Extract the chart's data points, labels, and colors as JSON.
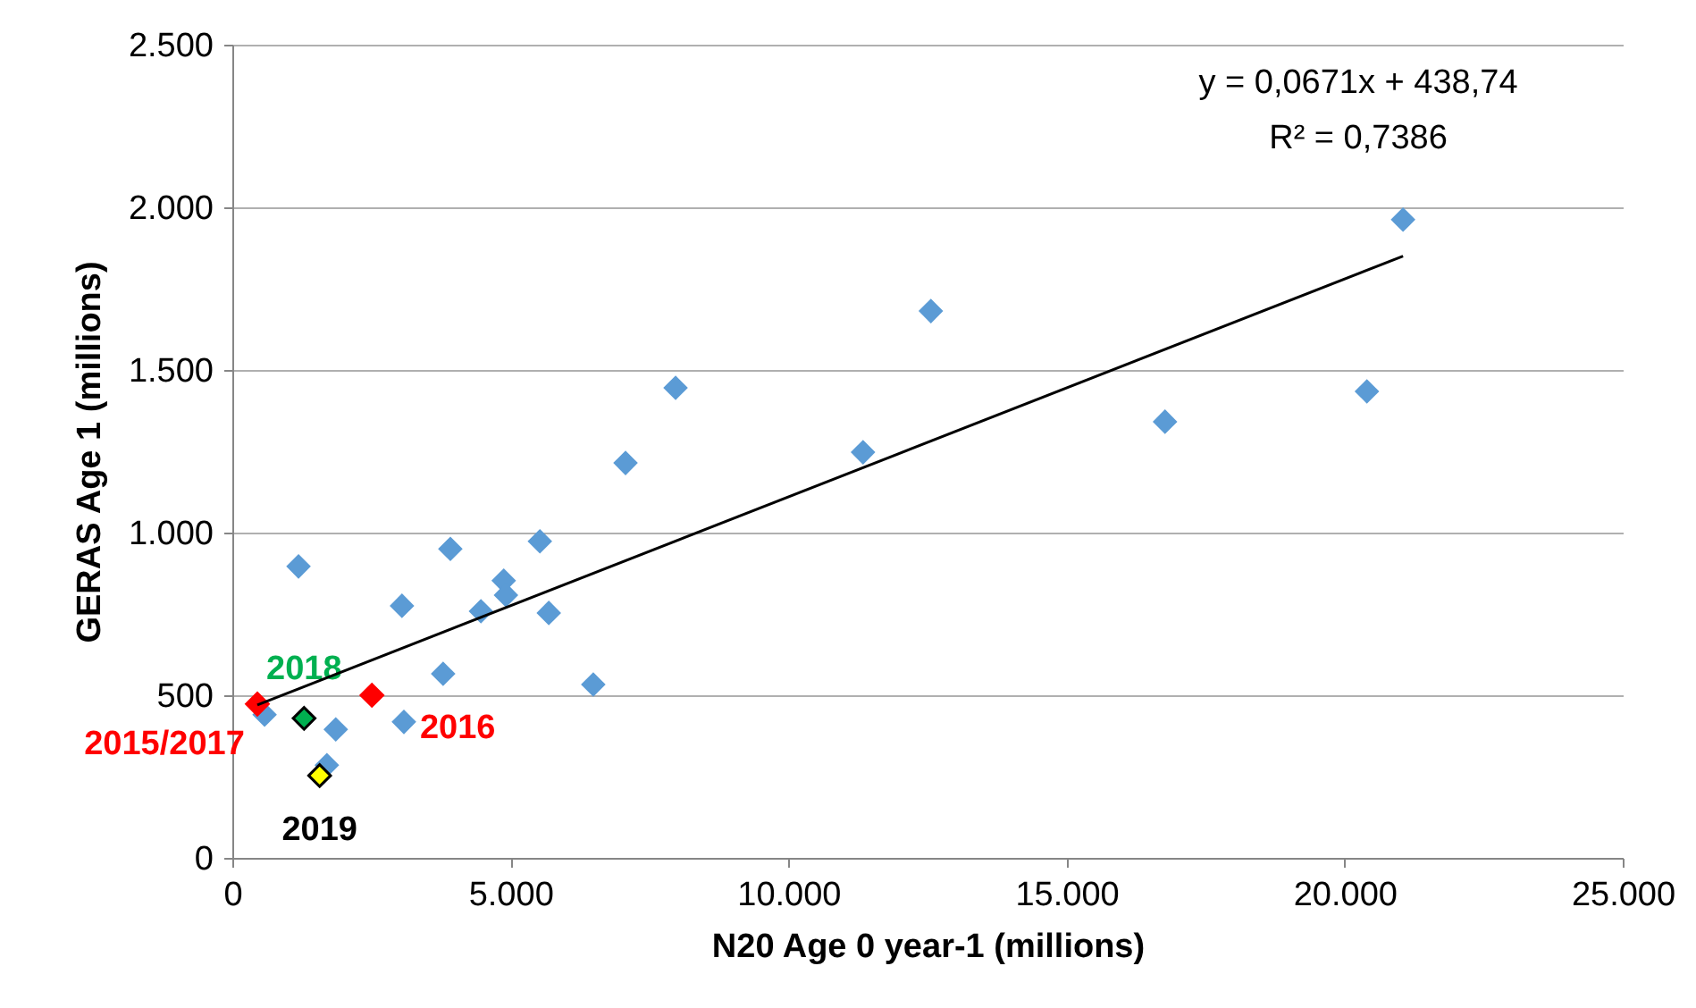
{
  "chart_data": {
    "type": "scatter",
    "xlabel": "N20 Age 0 year-1 (millions)",
    "ylabel": "GERAS Age 1 (millions)",
    "xlim": [
      0,
      25000
    ],
    "ylim": [
      0,
      2500
    ],
    "xticks": [
      0,
      {
        "value": 5000,
        "label": "5.000"
      },
      {
        "value": 10000,
        "label": "10.000"
      },
      {
        "value": 15000,
        "label": "15.000"
      },
      {
        "value": 20000,
        "label": "20.000"
      },
      {
        "value": 25000,
        "label": "25.000"
      }
    ],
    "yticks": [
      0,
      500,
      {
        "value": 1000,
        "label": "1.000"
      },
      {
        "value": 1500,
        "label": "1.500"
      },
      {
        "value": 2000,
        "label": "2.000"
      },
      {
        "value": 2500,
        "label": "2.500"
      }
    ],
    "grid": "y",
    "marker": "diamond",
    "series": [
      {
        "color": "#5b9bd5",
        "x": [
          1190,
          3085,
          1700,
          580,
          1860,
          3050,
          3920,
          4470,
          4880,
          4920,
          5530,
          5690,
          6490,
          3790,
          7070,
          7970,
          11340,
          12560,
          16770,
          20400,
          21050
        ],
        "values": [
          896,
          418,
          285,
          440,
          395,
          775,
          950,
          758,
          852,
          808,
          973,
          753,
          533,
          566,
          1214,
          1445,
          1247,
          1681,
          1341,
          1434,
          1962
        ]
      },
      {
        "name": "2015/2017",
        "color": "#ff0000",
        "x": [
          450
        ],
        "values": [
          473
        ]
      },
      {
        "name": "2016",
        "color": "#ff0000",
        "x": [
          2510
        ],
        "values": [
          500
        ]
      },
      {
        "name": "2018",
        "color": "#00b050",
        "x": [
          1290
        ],
        "values": [
          429
        ]
      },
      {
        "name": "2019",
        "color": "#ffff00",
        "x": [
          1570
        ],
        "values": [
          253
        ]
      },
      {
        "type": "line",
        "marker": "none",
        "color": "#000000",
        "x": [
          450,
          21050
        ],
        "values": [
          470,
          1850
        ]
      }
    ],
    "annotations": [
      "y = 0,0671x + 438,74",
      "R² = 0,7386"
    ]
  }
}
